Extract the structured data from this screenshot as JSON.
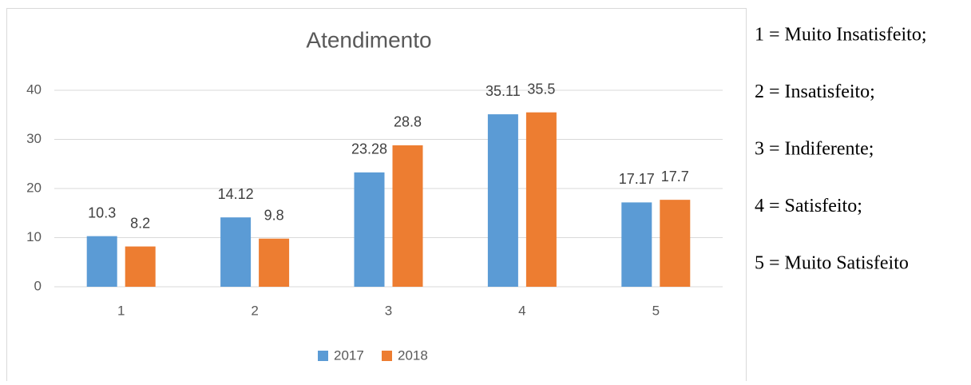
{
  "chart_data": {
    "type": "bar",
    "title": "Atendimento",
    "categories": [
      "1",
      "2",
      "3",
      "4",
      "5"
    ],
    "series": [
      {
        "name": "2017",
        "color": "#5b9bd5",
        "values": [
          10.3,
          14.12,
          23.28,
          35.11,
          17.17
        ]
      },
      {
        "name": "2018",
        "color": "#ed7d31",
        "values": [
          8.2,
          9.8,
          28.8,
          35.5,
          17.7
        ]
      }
    ],
    "ylim": [
      0,
      40
    ],
    "yticks": [
      0,
      10,
      20,
      30,
      40
    ],
    "grid": true,
    "legend": "bottom",
    "annotations": [
      "1 = Muito Insatisfeito;",
      "2 = Insatisfeito;",
      "3 = Indiferente;",
      "4 = Satisfeito;",
      "5 = Muito Satisfeito"
    ]
  }
}
